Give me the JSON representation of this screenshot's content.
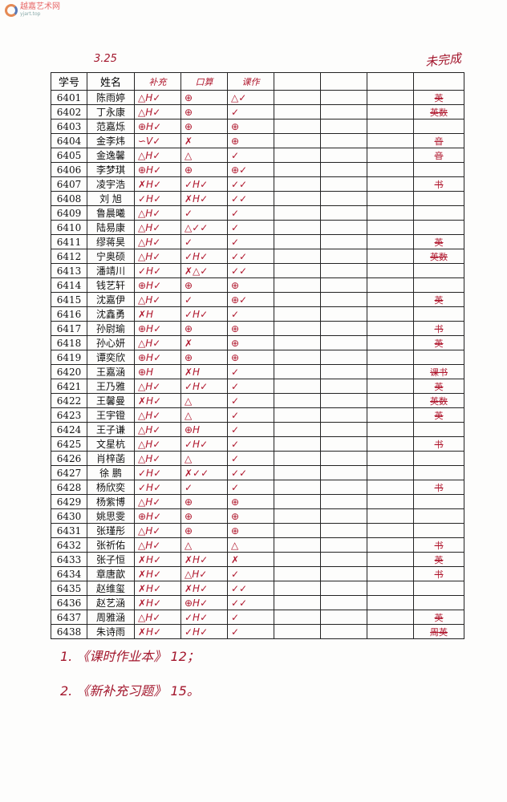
{
  "watermark": {
    "name": "越嘉艺术网",
    "url": "yjart.top"
  },
  "date": "3.25",
  "right_header": "未完成",
  "headers": {
    "id": "学号",
    "name": "姓名",
    "c1": "补充",
    "c2": "口算",
    "c3": "课作"
  },
  "rows": [
    {
      "id": "6401",
      "name": "陈雨婷",
      "m": [
        "△H✓",
        "⊕",
        "△✓"
      ],
      "r": "英"
    },
    {
      "id": "6402",
      "name": "丁永康",
      "m": [
        "△H✓",
        "⊕",
        "✓"
      ],
      "r": "英数"
    },
    {
      "id": "6403",
      "name": "范嘉烁",
      "m": [
        "⊕H✓",
        "⊕",
        "⊕"
      ],
      "r": ""
    },
    {
      "id": "6404",
      "name": "金李炜",
      "m": [
        "∽V✓",
        "✗",
        "⊕"
      ],
      "r": "音"
    },
    {
      "id": "6405",
      "name": "金逸馨",
      "m": [
        "△H✓",
        "△",
        "✓"
      ],
      "r": "音"
    },
    {
      "id": "6406",
      "name": "李梦琪",
      "m": [
        "⊕H✓",
        "⊕",
        "⊕✓"
      ],
      "r": ""
    },
    {
      "id": "6407",
      "name": "凌宇浩",
      "m": [
        "✗H✓",
        "✓H✓",
        "✓✓"
      ],
      "r": "书"
    },
    {
      "id": "6408",
      "name": "刘 旭",
      "m": [
        "✓H✓",
        "✗H✓",
        "✓✓"
      ],
      "r": ""
    },
    {
      "id": "6409",
      "name": "鲁晨曦",
      "m": [
        "△H✓",
        "✓",
        "✓"
      ],
      "r": ""
    },
    {
      "id": "6410",
      "name": "陆易康",
      "m": [
        "△H✓",
        "△✓✓",
        "✓"
      ],
      "r": ""
    },
    {
      "id": "6411",
      "name": "缪蒋昊",
      "m": [
        "△H✓",
        "✓",
        "✓"
      ],
      "r": "英"
    },
    {
      "id": "6412",
      "name": "宁奥硕",
      "m": [
        "△H✓",
        "✓H✓",
        "✓✓"
      ],
      "r": "英数"
    },
    {
      "id": "6413",
      "name": "潘靖川",
      "m": [
        "✓H✓",
        "✗△✓",
        "✓✓"
      ],
      "r": ""
    },
    {
      "id": "6414",
      "name": "钱艺轩",
      "m": [
        "⊕H✓",
        "⊕",
        "⊕"
      ],
      "r": ""
    },
    {
      "id": "6415",
      "name": "沈嘉伊",
      "m": [
        "△H✓",
        "✓",
        "⊕✓"
      ],
      "r": "英"
    },
    {
      "id": "6416",
      "name": "沈鑫勇",
      "m": [
        "✗H",
        "✓H✓",
        "✓"
      ],
      "r": ""
    },
    {
      "id": "6417",
      "name": "孙尉瑜",
      "m": [
        "⊕H✓",
        "⊕",
        "⊕"
      ],
      "r": "书"
    },
    {
      "id": "6418",
      "name": "孙心妍",
      "m": [
        "△H✓",
        "✗",
        "⊕"
      ],
      "r": "英"
    },
    {
      "id": "6419",
      "name": "谭奕欣",
      "m": [
        "⊕H✓",
        "⊕",
        "⊕"
      ],
      "r": ""
    },
    {
      "id": "6420",
      "name": "王嘉涵",
      "m": [
        "⊕H",
        "✗H",
        "✓"
      ],
      "r": "课书"
    },
    {
      "id": "6421",
      "name": "王乃雅",
      "m": [
        "△H✓",
        "✓H✓",
        "✓"
      ],
      "r": "英"
    },
    {
      "id": "6422",
      "name": "王馨曼",
      "m": [
        "✗H✓",
        "△",
        "✓"
      ],
      "r": "英数"
    },
    {
      "id": "6423",
      "name": "王宇镫",
      "m": [
        "△H✓",
        "△",
        "✓"
      ],
      "r": "英"
    },
    {
      "id": "6424",
      "name": "王子谦",
      "m": [
        "△H✓",
        "⊕H",
        "✓"
      ],
      "r": ""
    },
    {
      "id": "6425",
      "name": "文星杭",
      "m": [
        "△H✓",
        "✓H✓",
        "✓"
      ],
      "r": "书"
    },
    {
      "id": "6426",
      "name": "肖梓菡",
      "m": [
        "△H✓",
        "△",
        "✓"
      ],
      "r": ""
    },
    {
      "id": "6427",
      "name": "徐 鹏",
      "m": [
        "✓H✓",
        "✗✓✓",
        "✓✓"
      ],
      "r": ""
    },
    {
      "id": "6428",
      "name": "杨欣奕",
      "m": [
        "✓H✓",
        "✓",
        "✓"
      ],
      "r": "书"
    },
    {
      "id": "6429",
      "name": "杨紫博",
      "m": [
        "△H✓",
        "⊕",
        "⊕"
      ],
      "r": ""
    },
    {
      "id": "6430",
      "name": "姚思雯",
      "m": [
        "⊕H✓",
        "⊕",
        "⊕"
      ],
      "r": ""
    },
    {
      "id": "6431",
      "name": "张瑾彤",
      "m": [
        "△H✓",
        "⊕",
        "⊕"
      ],
      "r": ""
    },
    {
      "id": "6432",
      "name": "张祈佑",
      "m": [
        "△H✓",
        "△",
        "△"
      ],
      "r": "书"
    },
    {
      "id": "6433",
      "name": "张子恒",
      "m": [
        "✗H✓",
        "✗H✓",
        "✗"
      ],
      "r": "英"
    },
    {
      "id": "6434",
      "name": "章唐歆",
      "m": [
        "✗H✓",
        "△H✓",
        "✓"
      ],
      "r": "书"
    },
    {
      "id": "6435",
      "name": "赵维玺",
      "m": [
        "✗H✓",
        "✗H✓",
        "✓✓"
      ],
      "r": ""
    },
    {
      "id": "6436",
      "name": "赵艺涵",
      "m": [
        "✗H✓",
        "⊕H✓",
        "✓✓"
      ],
      "r": ""
    },
    {
      "id": "6437",
      "name": "周雅涵",
      "m": [
        "△H✓",
        "✓H✓",
        "✓"
      ],
      "r": "英"
    },
    {
      "id": "6438",
      "name": "朱诗雨",
      "m": [
        "✗H✓",
        "✓H✓",
        "✓"
      ],
      "r": "周英"
    }
  ],
  "notes": [
    "1. 《课时作业本》 12；",
    "2. 《新补充习题》 15。"
  ]
}
